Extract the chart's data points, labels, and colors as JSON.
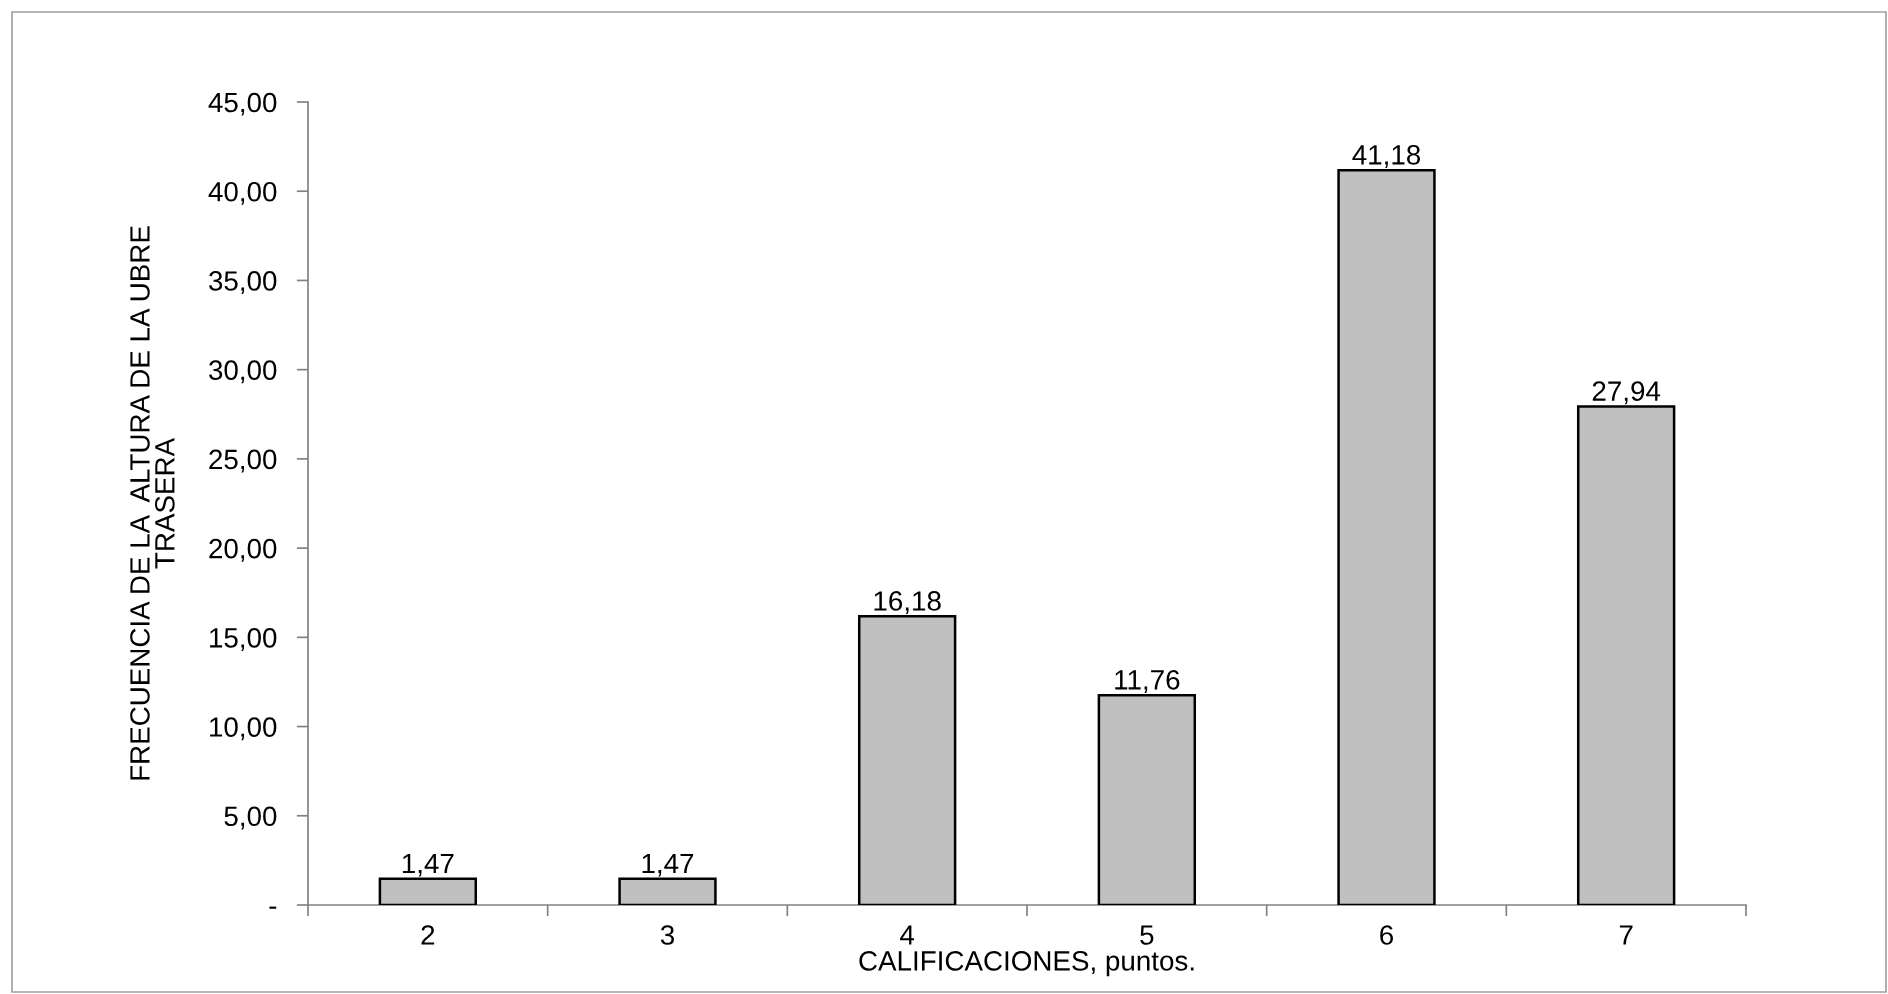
{
  "chart_data": {
    "type": "bar",
    "xlabel": "CALIFICACIONES, puntos.",
    "ylabel": "FRECUENCIA DE LA  ALTURA DE LA UBRE\nTRASERA",
    "categories": [
      "2",
      "3",
      "4",
      "5",
      "6",
      "7"
    ],
    "values": [
      1.47,
      1.47,
      16.18,
      11.76,
      41.18,
      27.94
    ],
    "value_labels": [
      "1,47",
      "1,47",
      "16,18",
      "11,76",
      "41,18",
      "27,94"
    ],
    "color": "#c0c0c0",
    "ylim": [
      0,
      45
    ],
    "yticks": [
      {
        "value": 0,
        "label": "-"
      },
      {
        "value": 5,
        "label": "5,00"
      },
      {
        "value": 10,
        "label": "10,00"
      },
      {
        "value": 15,
        "label": "15,00"
      },
      {
        "value": 20,
        "label": "20,00"
      },
      {
        "value": 25,
        "label": "25,00"
      },
      {
        "value": 30,
        "label": "30,00"
      },
      {
        "value": 35,
        "label": "35,00"
      },
      {
        "value": 40,
        "label": "40,00"
      },
      {
        "value": 45,
        "label": "45,00"
      }
    ],
    "grid": false,
    "legend": false
  }
}
